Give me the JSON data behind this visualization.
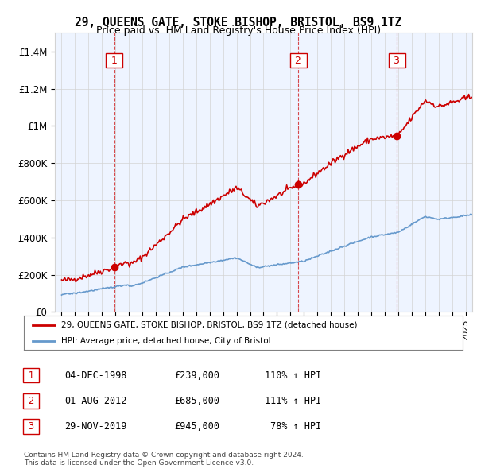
{
  "title": "29, QUEENS GATE, STOKE BISHOP, BRISTOL, BS9 1TZ",
  "subtitle": "Price paid vs. HM Land Registry's House Price Index (HPI)",
  "legend_line1": "29, QUEENS GATE, STOKE BISHOP, BRISTOL, BS9 1TZ (detached house)",
  "legend_line2": "HPI: Average price, detached house, City of Bristol",
  "footnote1": "Contains HM Land Registry data © Crown copyright and database right 2024.",
  "footnote2": "This data is licensed under the Open Government Licence v3.0.",
  "sales": [
    {
      "num": 1,
      "date": "04-DEC-1998",
      "price": 239000,
      "pct": "110%",
      "dir": "↑",
      "year": 1998.92
    },
    {
      "num": 2,
      "date": "01-AUG-2012",
      "price": 685000,
      "pct": "111%",
      "dir": "↑",
      "year": 2012.58
    },
    {
      "num": 3,
      "date": "29-NOV-2019",
      "price": 945000,
      "pct": "78%",
      "dir": "↑",
      "year": 2019.91
    }
  ],
  "red_color": "#cc0000",
  "blue_color": "#6699cc",
  "bg_color": "#ddeeff",
  "plot_bg": "#eef4ff",
  "ylim": [
    0,
    1500000
  ],
  "xlim_start": 1994.5,
  "xlim_end": 2025.5
}
